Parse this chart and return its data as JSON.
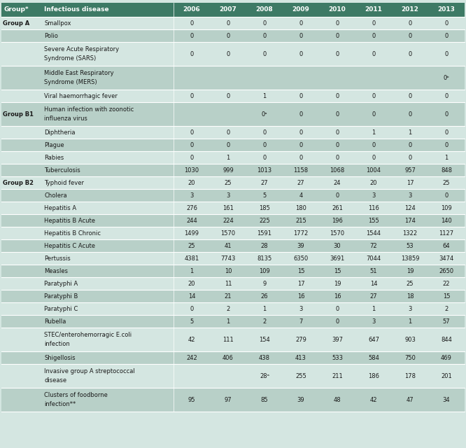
{
  "header_bg": "#3d7a65",
  "header_fg": "#ffffff",
  "row_bg_shade": "#b8d0c8",
  "row_bg_plain": "#d4e6e1",
  "fig_bg": "#d4e6e1",
  "years": [
    "2006",
    "2007",
    "2008",
    "2009",
    "2010",
    "2011",
    "2012",
    "2013"
  ],
  "rows": [
    {
      "group": "Group A",
      "disease": "Smallpox",
      "values": [
        "0",
        "0",
        "0",
        "0",
        "0",
        "0",
        "0",
        "0"
      ],
      "shade": false,
      "tall": false
    },
    {
      "group": "",
      "disease": "Polio",
      "values": [
        "0",
        "0",
        "0",
        "0",
        "0",
        "0",
        "0",
        "0"
      ],
      "shade": true,
      "tall": false
    },
    {
      "group": "",
      "disease": "Severe Acute Respiratory\nSyndrome (SARS)",
      "values": [
        "0",
        "0",
        "0",
        "0",
        "0",
        "0",
        "0",
        "0"
      ],
      "shade": false,
      "tall": true
    },
    {
      "group": "",
      "disease": "Middle East Respiratory\nSyndrome (MERS)",
      "values": [
        "",
        "",
        "",
        "",
        "",
        "",
        "",
        "0ᵇ"
      ],
      "shade": true,
      "tall": true
    },
    {
      "group": "",
      "disease": "Viral haemorrhagic fever",
      "values": [
        "0",
        "0",
        "1",
        "0",
        "0",
        "0",
        "0",
        "0"
      ],
      "shade": false,
      "tall": false
    },
    {
      "group": "Group B1",
      "disease": "Human infection with zoonotic\ninfluenza virus",
      "values": [
        "",
        "",
        "0ᵃ",
        "0",
        "0",
        "0",
        "0",
        "0"
      ],
      "shade": true,
      "tall": true
    },
    {
      "group": "",
      "disease": "Diphtheria",
      "values": [
        "0",
        "0",
        "0",
        "0",
        "0",
        "1",
        "1",
        "0"
      ],
      "shade": false,
      "tall": false
    },
    {
      "group": "",
      "disease": "Plague",
      "values": [
        "0",
        "0",
        "0",
        "0",
        "0",
        "0",
        "0",
        "0"
      ],
      "shade": true,
      "tall": false
    },
    {
      "group": "",
      "disease": "Rabies",
      "values": [
        "0",
        "1",
        "0",
        "0",
        "0",
        "0",
        "0",
        "1"
      ],
      "shade": false,
      "tall": false
    },
    {
      "group": "",
      "disease": "Tuberculosis",
      "values": [
        "1030",
        "999",
        "1013",
        "1158",
        "1068",
        "1004",
        "957",
        "848"
      ],
      "shade": true,
      "tall": false
    },
    {
      "group": "Group B2",
      "disease": "Typhoid fever",
      "values": [
        "20",
        "25",
        "27",
        "27",
        "24",
        "20",
        "17",
        "25"
      ],
      "shade": false,
      "tall": false
    },
    {
      "group": "",
      "disease": "Cholera",
      "values": [
        "3",
        "3",
        "5",
        "4",
        "0",
        "3",
        "3",
        "0"
      ],
      "shade": true,
      "tall": false
    },
    {
      "group": "",
      "disease": "Hepatitis A",
      "values": [
        "276",
        "161",
        "185",
        "180",
        "261",
        "116",
        "124",
        "109"
      ],
      "shade": false,
      "tall": false
    },
    {
      "group": "",
      "disease": "Hepatitis B Acute",
      "values": [
        "244",
        "224",
        "225",
        "215",
        "196",
        "155",
        "174",
        "140"
      ],
      "shade": true,
      "tall": false
    },
    {
      "group": "",
      "disease": "Hepatitis B Chronic",
      "values": [
        "1499",
        "1570",
        "1591",
        "1772",
        "1570",
        "1544",
        "1322",
        "1127"
      ],
      "shade": false,
      "tall": false
    },
    {
      "group": "",
      "disease": "Hepatitis C Acute",
      "values": [
        "25",
        "41",
        "28",
        "39",
        "30",
        "72",
        "53",
        "64"
      ],
      "shade": true,
      "tall": false
    },
    {
      "group": "",
      "disease": "Pertussis",
      "values": [
        "4381",
        "7743",
        "8135",
        "6350",
        "3691",
        "7044",
        "13859",
        "3474"
      ],
      "shade": false,
      "tall": false
    },
    {
      "group": "",
      "disease": "Measles",
      "values": [
        "1",
        "10",
        "109",
        "15",
        "15",
        "51",
        "19",
        "2650"
      ],
      "shade": true,
      "tall": false
    },
    {
      "group": "",
      "disease": "Paratyphi A",
      "values": [
        "20",
        "11",
        "9",
        "17",
        "19",
        "14",
        "25",
        "22"
      ],
      "shade": false,
      "tall": false
    },
    {
      "group": "",
      "disease": "Paratyphi B",
      "values": [
        "14",
        "21",
        "26",
        "16",
        "16",
        "27",
        "18",
        "15"
      ],
      "shade": true,
      "tall": false
    },
    {
      "group": "",
      "disease": "Paratyphi C",
      "values": [
        "0",
        "2",
        "1",
        "3",
        "0",
        "1",
        "3",
        "2"
      ],
      "shade": false,
      "tall": false
    },
    {
      "group": "",
      "disease": "Rubella",
      "values": [
        "5",
        "1",
        "2",
        "7",
        "0",
        "3",
        "1",
        "57"
      ],
      "shade": true,
      "tall": false
    },
    {
      "group": "",
      "disease": "STEC/enterohemorragic E.coli\ninfection",
      "values": [
        "42",
        "111",
        "154",
        "279",
        "397",
        "647",
        "903",
        "844"
      ],
      "shade": false,
      "tall": true
    },
    {
      "group": "",
      "disease": "Shigellosis",
      "values": [
        "242",
        "406",
        "438",
        "413",
        "533",
        "584",
        "750",
        "469"
      ],
      "shade": true,
      "tall": false
    },
    {
      "group": "",
      "disease": "Invasive group A streptococcal\ndisease",
      "values": [
        "",
        "",
        "28ᵃ",
        "255",
        "211",
        "186",
        "178",
        "201"
      ],
      "shade": false,
      "tall": true
    },
    {
      "group": "",
      "disease": "Clusters of foodborne\ninfection**",
      "values": [
        "95",
        "97",
        "85",
        "39",
        "48",
        "42",
        "47",
        "34"
      ],
      "shade": true,
      "tall": true
    }
  ]
}
